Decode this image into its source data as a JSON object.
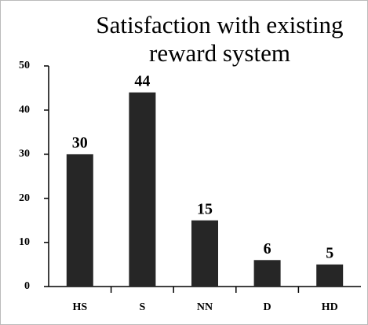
{
  "chart_data": {
    "type": "bar",
    "title": "Satisfaction with existing reward system",
    "categories": [
      "HS",
      "S",
      "NN",
      "D",
      "HD"
    ],
    "values": [
      30,
      44,
      15,
      6,
      5
    ],
    "color": "#262626",
    "ylim": [
      0,
      50
    ],
    "yticks": [
      0,
      10,
      20,
      30,
      40,
      50
    ]
  }
}
